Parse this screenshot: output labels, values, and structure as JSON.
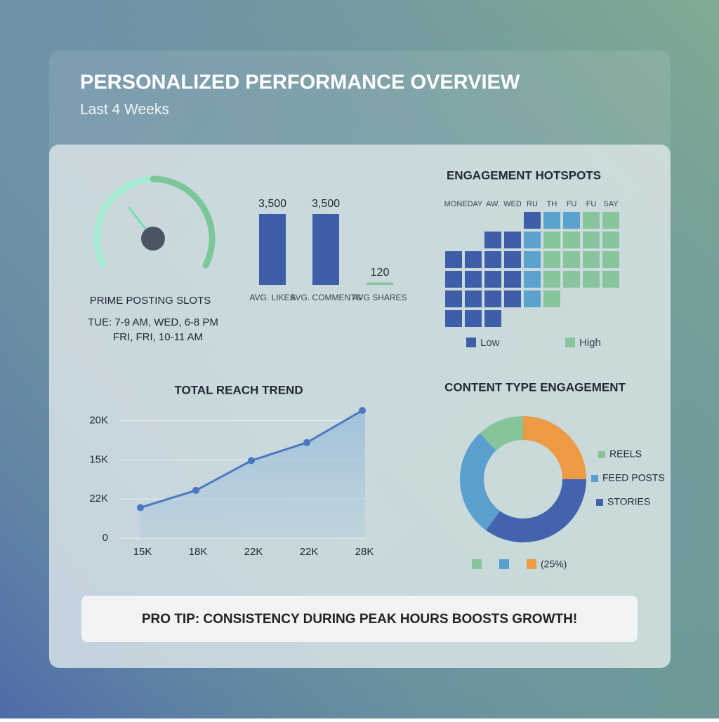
{
  "header": {
    "title": "PERSONALIZED PERFORMANCE OVERVIEW",
    "subtitle": "Last 4 Weeks"
  },
  "slots": {
    "title": "PRIME POSTING SLOTS",
    "lines": [
      "TUE: 7-9 AM, WED, 6-8 PM",
      "FRI, FRI, 10-11 AM"
    ]
  },
  "chart_data": [
    {
      "type": "bar",
      "categories": [
        "AVG. LIKES",
        "AVG. COMMENTS",
        "AVG SHARES"
      ],
      "values": [
        3500,
        3500,
        120
      ],
      "value_labels": [
        "3,500",
        "3,500",
        "120"
      ],
      "colors": [
        "#3f5ea8",
        "#3f5ea8",
        "#86c49a"
      ]
    },
    {
      "type": "line",
      "title": "TOTAL REACH TREND",
      "categories": [
        "15K",
        "18K",
        "22K",
        "22K",
        "28K"
      ],
      "series": [
        {
          "color": "#4a78c0",
          "values": [
            3900,
            6100,
            9900,
            12200,
            16300
          ]
        }
      ],
      "ylim": [
        0,
        16300
      ],
      "yticks": [
        0,
        {
          "value": 5000,
          "label": "22K"
        },
        {
          "value": 10000,
          "label": "15K"
        },
        {
          "value": 15000,
          "label": "20K"
        }
      ],
      "grid": true
    },
    {
      "type": "heatmap",
      "title": "ENGAGEMENT HOTSPOTS",
      "categories": [
        "MONEDAY",
        null,
        "AW.",
        "WED",
        "RU",
        "TH",
        "FU",
        "FU",
        "SAY"
      ],
      "values": [
        [
          null,
          null,
          null,
          null,
          1,
          2,
          2,
          3,
          3
        ],
        [
          null,
          null,
          1,
          1,
          2,
          3,
          3,
          3,
          3
        ],
        [
          1,
          1,
          1,
          1,
          2,
          3,
          3,
          3,
          3
        ],
        [
          1,
          1,
          1,
          1,
          2,
          3,
          3,
          3,
          3
        ],
        [
          1,
          1,
          1,
          1,
          2,
          3,
          null,
          null,
          null
        ],
        [
          1,
          1,
          1,
          null,
          null,
          null,
          null,
          null,
          null
        ]
      ],
      "color_scale": [
        "#3f5ea8",
        "#5ba3cf",
        "#88c49c"
      ],
      "legend": [
        "Low",
        "High"
      ]
    },
    {
      "type": "donut",
      "title": "CONTENT TYPE ENGAGEMENT",
      "series": [
        {
          "color": "#ee9a45",
          "values": [
            25
          ],
          "value_labels": [
            "(25%)"
          ]
        },
        {
          "name": "STORIES",
          "color": "#4463ad",
          "values": [
            35
          ]
        },
        {
          "name": "FEED POSTS",
          "color": "#5b9fcf",
          "values": [
            28
          ]
        },
        {
          "name": "REELS",
          "color": "#86c49a",
          "values": [
            12
          ]
        }
      ]
    }
  ],
  "tip": "PRO TIP: CONSISTENCY DURING PEAK HOURS BOOSTS GROWTH!"
}
